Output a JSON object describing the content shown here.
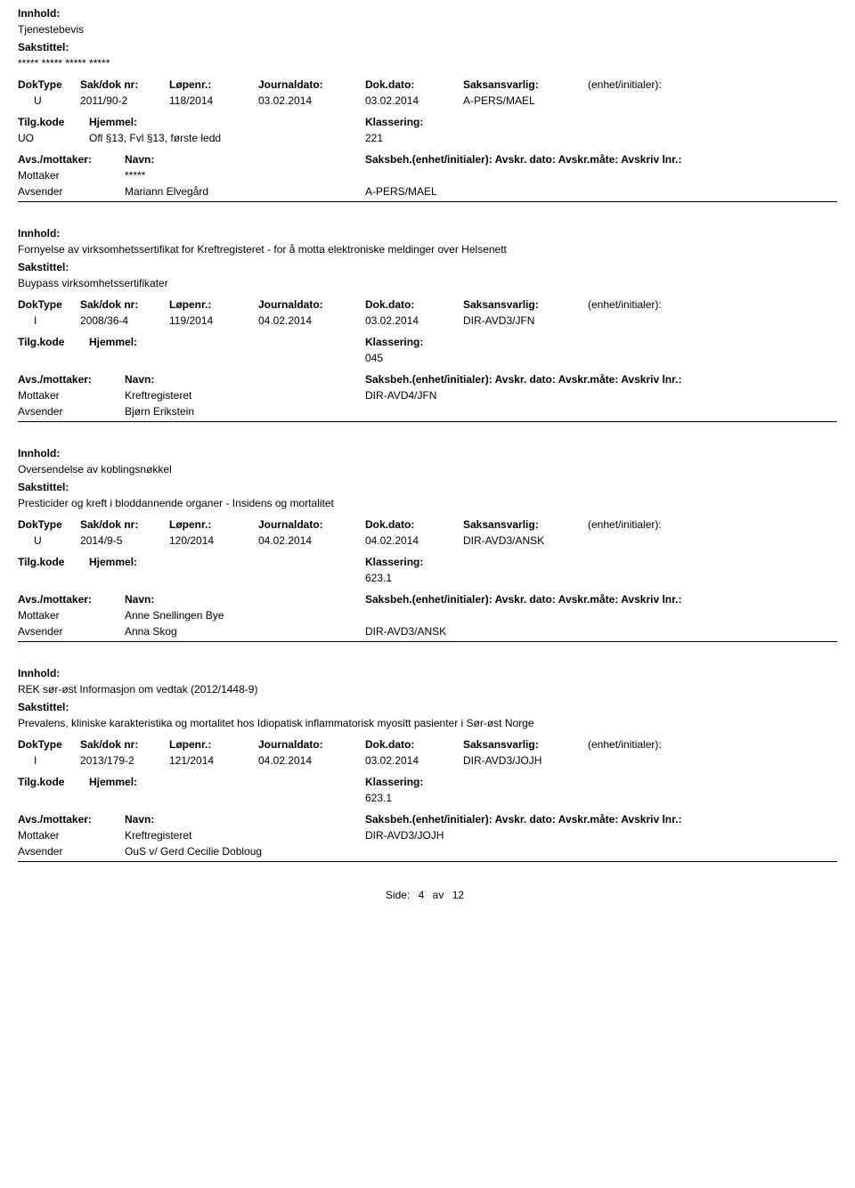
{
  "labels": {
    "innhold": "Innhold:",
    "sakstittel": "Sakstittel:",
    "doktype": "DokType",
    "sakdoknr": "Sak/dok nr:",
    "lopenr": "Løpenr.:",
    "journaldato": "Journaldato:",
    "dokdato": "Dok.dato:",
    "saksansvarlig": "Saksansvarlig:",
    "enhet": "(enhet/initialer):",
    "tilgkode": "Tilg.kode",
    "hjemmel": "Hjemmel:",
    "klassering": "Klassering:",
    "avsmottaker": "Avs./mottaker:",
    "navn": "Navn:",
    "saksbeh_full": "Saksbeh.(enhet/initialer): Avskr. dato: Avskr.måte: Avskriv lnr.:",
    "mottaker": "Mottaker",
    "avsender": "Avsender"
  },
  "records": [
    {
      "innhold": "Tjenestebevis",
      "sakstittel": "***** ***** ***** *****",
      "doktype": "U",
      "sakdoknr": "2011/90-2",
      "lopenr": "118/2014",
      "journaldato": "03.02.2014",
      "dokdato": "03.02.2014",
      "saksansvarlig": "A-PERS/MAEL",
      "tilgkode": "UO",
      "hjemmel": "Ofl §13, Fvl §13, første ledd",
      "klassering": "221",
      "parties": [
        {
          "role": "Mottaker",
          "navn": "*****",
          "saksbeh": ""
        },
        {
          "role": "Avsender",
          "navn": "Mariann Elvegård",
          "saksbeh": "A-PERS/MAEL"
        }
      ]
    },
    {
      "innhold": "Fornyelse av virksomhetssertifikat for Kreftregisteret -  for å motta elektroniske meldinger over Helsenett",
      "sakstittel": "Buypass virksomhetssertifikater",
      "doktype": "I",
      "sakdoknr": "2008/36-4",
      "lopenr": "119/2014",
      "journaldato": "04.02.2014",
      "dokdato": "03.02.2014",
      "saksansvarlig": "DIR-AVD3/JFN",
      "tilgkode": "",
      "hjemmel": "",
      "klassering": "045",
      "parties": [
        {
          "role": "Mottaker",
          "navn": "Kreftregisteret",
          "saksbeh": "DIR-AVD4/JFN"
        },
        {
          "role": "Avsender",
          "navn": "Bjørn Erikstein",
          "saksbeh": ""
        }
      ]
    },
    {
      "innhold": "Oversendelse av koblingsnøkkel",
      "sakstittel": "Presticider og kreft i bloddannende organer - Insidens og mortalitet",
      "doktype": "U",
      "sakdoknr": "2014/9-5",
      "lopenr": "120/2014",
      "journaldato": "04.02.2014",
      "dokdato": "04.02.2014",
      "saksansvarlig": "DIR-AVD3/ANSK",
      "tilgkode": "",
      "hjemmel": "",
      "klassering": "623.1",
      "parties": [
        {
          "role": "Mottaker",
          "navn": "Anne Snellingen Bye",
          "saksbeh": ""
        },
        {
          "role": "Avsender",
          "navn": "Anna Skog",
          "saksbeh": "DIR-AVD3/ANSK"
        }
      ]
    },
    {
      "innhold": "REK sør-øst Informasjon om vedtak (2012/1448-9)",
      "sakstittel": "Prevalens, kliniske karakteristika og mortalitet hos Idiopatisk inflammatorisk myositt pasienter i Sør-øst Norge",
      "doktype": "I",
      "sakdoknr": "2013/179-2",
      "lopenr": "121/2014",
      "journaldato": "04.02.2014",
      "dokdato": "03.02.2014",
      "saksansvarlig": "DIR-AVD3/JOJH",
      "tilgkode": "",
      "hjemmel": "",
      "klassering": "623.1",
      "parties": [
        {
          "role": "Mottaker",
          "navn": "Kreftregisteret",
          "saksbeh": "DIR-AVD3/JOJH"
        },
        {
          "role": "Avsender",
          "navn": "OuS v/ Gerd Cecilie Dobloug",
          "saksbeh": ""
        }
      ]
    }
  ],
  "footer": {
    "prefix": "Side:",
    "page": "4",
    "sep": "av",
    "total": "12"
  }
}
